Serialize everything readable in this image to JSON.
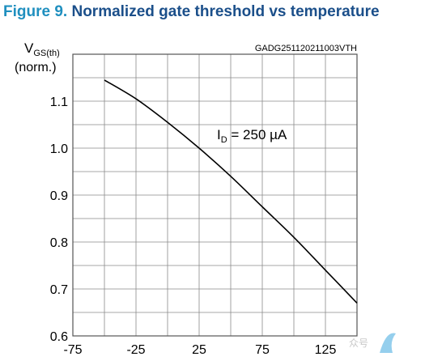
{
  "figure": {
    "number": "Figure 9.",
    "title": "Normalized gate threshold vs temperature"
  },
  "colors": {
    "figure_number": "#1f8fbf",
    "title": "#1b4f8a",
    "grid": "#8a8a8a",
    "curve": "#000000"
  },
  "chart_data": {
    "type": "line",
    "ylabel_main": "V",
    "ylabel_sub": "GS(th)",
    "ylabel_unit": "(norm.)",
    "code": "GADG251120211003VTH",
    "annotation": {
      "main": "I",
      "sub": "D",
      "rest": " = 250 µA"
    },
    "xlim": [
      -75,
      150
    ],
    "ylim": [
      0.6,
      1.2
    ],
    "xticks": [
      -75,
      -25,
      25,
      75,
      125
    ],
    "xtick_labels": [
      "-75",
      "-25",
      "25",
      "75",
      "125"
    ],
    "yticks": [
      0.6,
      0.7,
      0.8,
      0.9,
      1.0,
      1.1
    ],
    "ytick_labels": [
      "0.6",
      "0.7",
      "0.8",
      "0.9",
      "1.0",
      "1.1"
    ],
    "grid": true,
    "series": [
      {
        "x": [
          -50,
          -25,
          0,
          25,
          50,
          75,
          100,
          125,
          150
        ],
        "y": [
          1.145,
          1.105,
          1.055,
          1.0,
          0.94,
          0.875,
          0.81,
          0.74,
          0.67
        ]
      }
    ]
  },
  "watermark": {
    "label": "众号"
  }
}
